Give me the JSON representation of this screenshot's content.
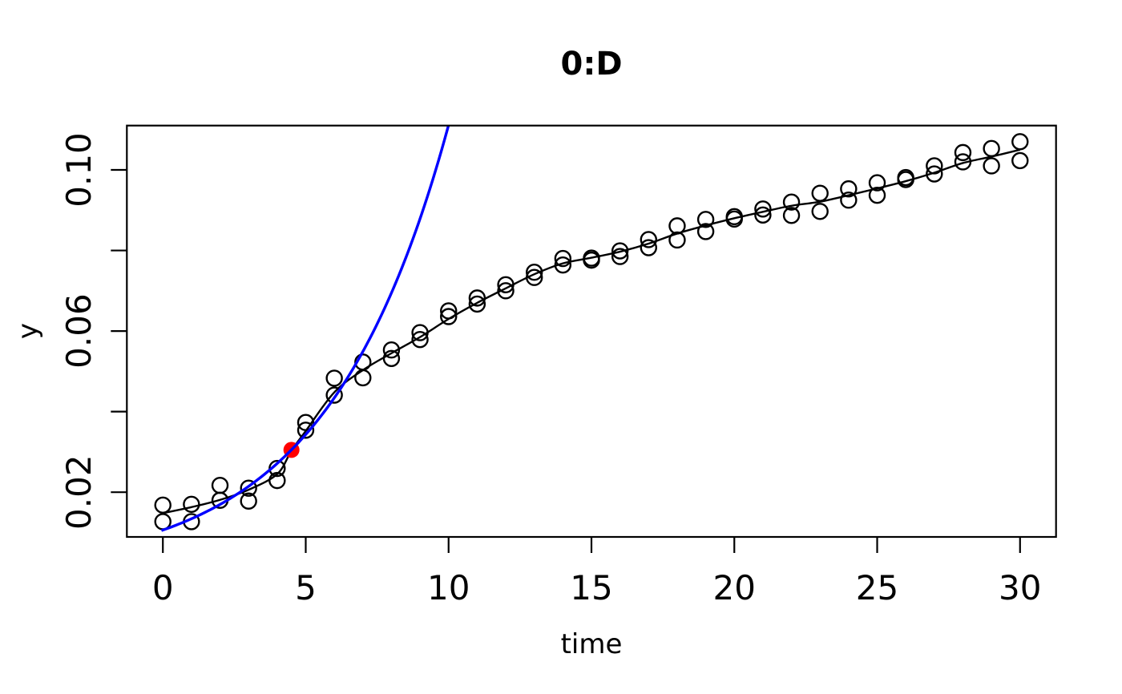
{
  "chart_data": {
    "type": "scatter",
    "title": "0:D",
    "xlabel": "time",
    "ylabel": "y",
    "xlim": [
      -1.26,
      31.26
    ],
    "ylim": [
      0.0089,
      0.111
    ],
    "grid": false,
    "legend": null,
    "x_ticks": [
      {
        "value": 0,
        "label": "0"
      },
      {
        "value": 5,
        "label": "5"
      },
      {
        "value": 10,
        "label": "10"
      },
      {
        "value": 15,
        "label": "15"
      },
      {
        "value": 20,
        "label": "20"
      },
      {
        "value": 25,
        "label": "25"
      },
      {
        "value": 30,
        "label": "30"
      }
    ],
    "y_ticks": [
      {
        "value": 0.02,
        "label": "0.02"
      },
      {
        "value": 0.04,
        "label": ""
      },
      {
        "value": 0.06,
        "label": "0.06"
      },
      {
        "value": 0.08,
        "label": ""
      },
      {
        "value": 0.1,
        "label": "0.10"
      }
    ],
    "colors": {
      "background": "#ffffff",
      "foreground": "#000000",
      "observations": "#000000",
      "fitted_curve": "#000000",
      "exponential_curve": "#0000ff",
      "marked_point": "#ff0000"
    },
    "series": [
      {
        "name": "observations",
        "type": "scatter",
        "marker": "open-circle",
        "color": "#000000",
        "x": [
          0,
          0,
          1,
          1,
          2,
          2,
          3,
          3,
          4,
          4,
          5,
          5,
          6,
          6,
          7,
          7,
          8,
          8,
          9,
          9,
          10,
          10,
          11,
          11,
          12,
          12,
          13,
          13,
          14,
          14,
          15,
          15,
          16,
          16,
          17,
          17,
          18,
          18,
          19,
          19,
          20,
          20,
          21,
          21,
          22,
          22,
          23,
          23,
          24,
          24,
          25,
          25,
          26,
          26,
          27,
          27,
          28,
          28,
          29,
          29,
          30,
          30
        ],
        "y": [
          0.0168,
          0.0127,
          0.017,
          0.0127,
          0.0217,
          0.018,
          0.021,
          0.0178,
          0.0259,
          0.0229,
          0.0373,
          0.0354,
          0.0483,
          0.0441,
          0.0523,
          0.0484,
          0.0553,
          0.0532,
          0.0596,
          0.0579,
          0.065,
          0.0636,
          0.0682,
          0.0667,
          0.0715,
          0.07,
          0.0746,
          0.0733,
          0.078,
          0.0764,
          0.0781,
          0.0776,
          0.0799,
          0.0785,
          0.0827,
          0.0807,
          0.0861,
          0.0826,
          0.0877,
          0.0847,
          0.0884,
          0.0878,
          0.0903,
          0.0888,
          0.092,
          0.0887,
          0.0942,
          0.0897,
          0.0953,
          0.0925,
          0.0968,
          0.0937,
          0.0981,
          0.0976,
          0.101,
          0.099,
          0.1043,
          0.102,
          0.1053,
          0.101,
          0.107,
          0.1023
        ]
      },
      {
        "name": "fitted_model_curve",
        "type": "line",
        "color": "#000000",
        "points": [
          [
            0,
            0.0148
          ],
          [
            1,
            0.0163
          ],
          [
            2,
            0.0181
          ],
          [
            3,
            0.0206
          ],
          [
            4,
            0.0245
          ],
          [
            4.5,
            0.0303
          ],
          [
            5,
            0.0352
          ],
          [
            6,
            0.0448
          ],
          [
            7,
            0.0503
          ],
          [
            8,
            0.0545
          ],
          [
            9,
            0.0585
          ],
          [
            10,
            0.063
          ],
          [
            11,
            0.067
          ],
          [
            12,
            0.0706
          ],
          [
            13,
            0.0741
          ],
          [
            14,
            0.0768
          ],
          [
            15,
            0.0782
          ],
          [
            16,
            0.0797
          ],
          [
            17,
            0.0817
          ],
          [
            18,
            0.0842
          ],
          [
            19,
            0.0862
          ],
          [
            20,
            0.088
          ],
          [
            21,
            0.0896
          ],
          [
            22,
            0.0911
          ],
          [
            23,
            0.0921
          ],
          [
            24,
            0.0937
          ],
          [
            25,
            0.0954
          ],
          [
            26,
            0.0972
          ],
          [
            27,
            0.0993
          ],
          [
            28,
            0.1017
          ],
          [
            29,
            0.1033
          ],
          [
            30,
            0.105
          ]
        ]
      },
      {
        "name": "exponential_tangent_curve",
        "type": "line",
        "color": "#0000ff",
        "model": "y0 * exp(rate * t)",
        "y0": 0.0106,
        "rate": 0.235,
        "t_range": [
          -0.05,
          10.05
        ]
      },
      {
        "name": "marked_point",
        "type": "point",
        "marker": "filled-circle",
        "color": "#ff0000",
        "x": 4.5,
        "y": 0.0305
      }
    ]
  }
}
